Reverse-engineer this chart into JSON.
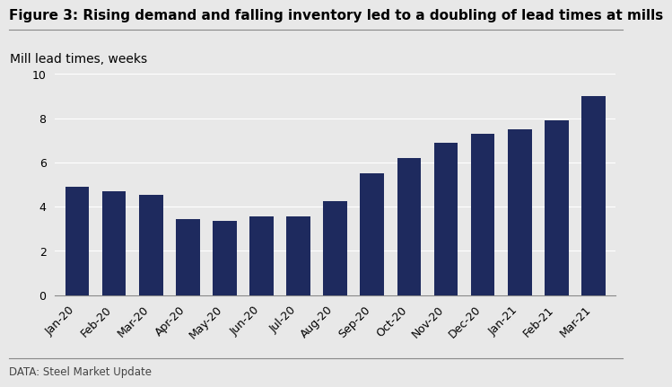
{
  "title": "Figure 3: Rising demand and falling inventory led to a doubling of lead times at mills",
  "ylabel": "Mill lead times, weeks",
  "data_source": "DATA: Steel Market Update",
  "categories": [
    "Jan-20",
    "Feb-20",
    "Mar-20",
    "Apr-20",
    "May-20",
    "Jun-20",
    "Jul-20",
    "Aug-20",
    "Sep-20",
    "Oct-20",
    "Nov-20",
    "Dec-20",
    "Jan-21",
    "Feb-21",
    "Mar-21"
  ],
  "values": [
    4.9,
    4.7,
    4.55,
    3.45,
    3.35,
    3.55,
    3.55,
    4.25,
    5.5,
    6.2,
    6.9,
    7.3,
    7.5,
    7.9,
    9.0
  ],
  "bar_color": "#1e2a5e",
  "background_color": "#e8e8e8",
  "ylim": [
    0,
    10
  ],
  "yticks": [
    0,
    2,
    4,
    6,
    8,
    10
  ],
  "title_fontsize": 11,
  "ylabel_fontsize": 10,
  "tick_fontsize": 9,
  "source_fontsize": 8.5
}
